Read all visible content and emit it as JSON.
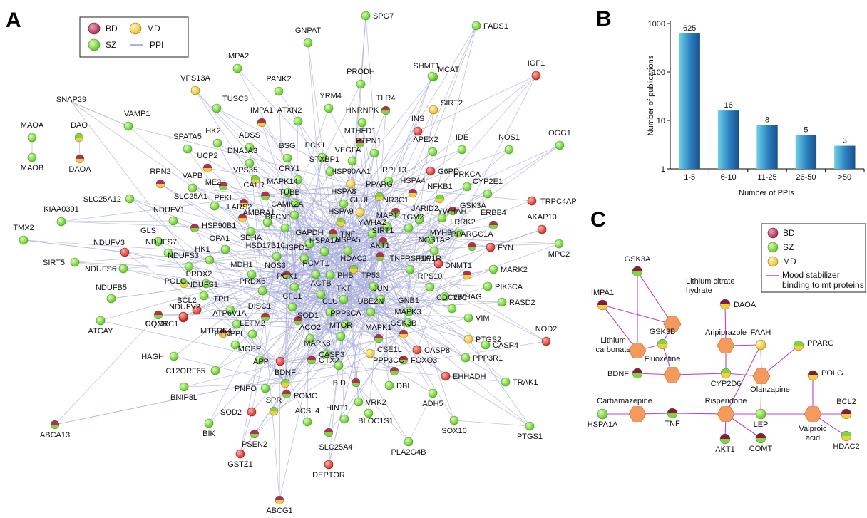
{
  "panels": {
    "a": "A",
    "b": "B",
    "c": "C"
  },
  "legend_a": {
    "bd": "BD",
    "md": "MD",
    "sz": "SZ",
    "ppi": "PPI"
  },
  "legend_c": {
    "bd": "BD",
    "sz": "SZ",
    "md": "MD",
    "mood": "Mood stabilizer",
    "mood2": "binding to mt proteins"
  },
  "colors": {
    "bd": "#b8385a",
    "sz": "#7fd63a",
    "md": "#f2cf38",
    "edge": "#9ea3d8",
    "drug": "#f08040",
    "mood_line": "#c040c8",
    "bar": "#2f8ac4"
  },
  "network_a": {
    "labels": [
      "SPG7",
      "FADS1",
      "GNPAT",
      "IMPA2",
      "SHMT1",
      "MCAT",
      "IGF1",
      "PRODH",
      "PANK2",
      "LYRM4",
      "TLR4",
      "SIRT2",
      "VPS13A",
      "TUSC3",
      "IMPA1",
      "ATXN2",
      "HNRNPK",
      "INS",
      "SNAP29",
      "VAMP1",
      "MAOA",
      "DAO",
      "MAOB",
      "DAOA",
      "SPATA5",
      "HK2",
      "ADSS",
      "MTHFD1",
      "IDE",
      "NOS1",
      "OGG1",
      "UCP2",
      "DNAJA3",
      "BSG",
      "PCK1",
      "PTPN1",
      "APEX2",
      "VPS35",
      "CRY1",
      "STXBP1",
      "VEGFA",
      "RPL13",
      "G6PD",
      "PRKCA",
      "RPN2",
      "VAPB",
      "ME2",
      "MAPK14",
      "HSP90AA1",
      "PPARG",
      "HSPA4",
      "NFKB1",
      "CYP2E1",
      "TRPC4AP",
      "SLC25A12",
      "SLC25A1",
      "PFKL",
      "CALR",
      "TUBB",
      "HSPA8",
      "GLUL",
      "NR3C1",
      "GSK3A",
      "KIAA0391",
      "LARS2",
      "CAMK2A",
      "HSPA9",
      "MAPT",
      "JARID2",
      "YWHAH",
      "ERBB4",
      "AKAP10",
      "TMX2",
      "NDUFV1",
      "HSP90B1",
      "SDHA",
      "BECN1",
      "AMBRA1",
      "YWHAZ",
      "TGM2",
      "LRRK2",
      "MYH9",
      "PPARGC1A",
      "NDUFV3",
      "GLS",
      "OPA1",
      "GAPDH",
      "TNF",
      "SIRT1",
      "NOS1AP",
      "FYN",
      "MPC2",
      "SIRT5",
      "NDUFS7",
      "HK1",
      "HSD17B10",
      "HSPD1",
      "HSPA1A",
      "HSPA5",
      "AKT1",
      "HIP1R",
      "NDUFS6",
      "NDUFS3",
      "MDH1",
      "NOS3",
      "PCMT1",
      "PHB",
      "HDAC2",
      "TNFRSF1A",
      "DNMT1",
      "MARK2",
      "PRDX2",
      "PRDX6",
      "PGK1",
      "TP53",
      "RPS10",
      "PIK3CA",
      "POLG",
      "NDUFS1",
      "ACTB",
      "TKT",
      "JUN",
      "YWHAG",
      "NDUFB5",
      "BCL2",
      "CFL1",
      "CLU",
      "UBE2N",
      "GNB1",
      "CDC25C",
      "RASD2",
      "ATCAY",
      "COMT",
      "NDUFV2",
      "TPI1",
      "DISC1",
      "SOD1",
      "PPP3CA",
      "MAPK3",
      "VIM",
      "UQCRC1",
      "ATP6V1A",
      "LETM2",
      "MTOR",
      "GSK3B",
      "NOD2",
      "MTERF4",
      "ACO2",
      "MAPK1",
      "CASP8",
      "PTGS2",
      "CASP4",
      "HAGH",
      "ETNPPL",
      "MAPK8",
      "CSE1L",
      "FOXO3",
      "PPP3R1",
      "MOBP",
      "OTX2",
      "APP",
      "CASP3",
      "C12ORF65",
      "EHHADH",
      "TRAK1",
      "PNPO",
      "BDNF",
      "PPP3CC",
      "BID",
      "DBI",
      "BNIP3L",
      "POMC",
      "VRK2",
      "ADH5",
      "SOD2",
      "SPR",
      "ACSL4",
      "HINT1",
      "BLOC1S1",
      "SOX10",
      "PTGS1",
      "ABCA13",
      "BIK",
      "PSEN2",
      "SLC25A4",
      "PLA2G4B",
      "GSTZ1",
      "DEPTOR",
      "ABCG1"
    ]
  },
  "chart_data": {
    "type": "bar",
    "categories": [
      "1-5",
      "6-10",
      "11-25",
      "26-50",
      ">50"
    ],
    "values": [
      625,
      16,
      8,
      5,
      3
    ],
    "data_labels": [
      "625",
      "16",
      "8",
      "5",
      "3"
    ],
    "xlabel": "Number of PPIs",
    "ylabel": "Number of publications",
    "ylim": [
      1,
      1000
    ],
    "yscale": "log",
    "yticks": [
      "1",
      "10",
      "100",
      "1000"
    ],
    "grid": false
  },
  "panel_c": {
    "proteins": [
      "GSK3A",
      "IMPA1",
      "DAOA",
      "GSK3B",
      "FAAH",
      "PPARG",
      "BDNF",
      "CYP2D6",
      "POLG",
      "BCL2",
      "HSPA1A",
      "TNF",
      "LEP",
      "AKT1",
      "COMT",
      "HDAC2"
    ],
    "drugs": [
      "Lithium citrate",
      "hydrate",
      "Lithium",
      "carbonate",
      "Fluoxetine",
      "Aripiprazole",
      "Olanzapine",
      "Carbamazepine",
      "Risperidone",
      "Valproic",
      "acid"
    ]
  }
}
